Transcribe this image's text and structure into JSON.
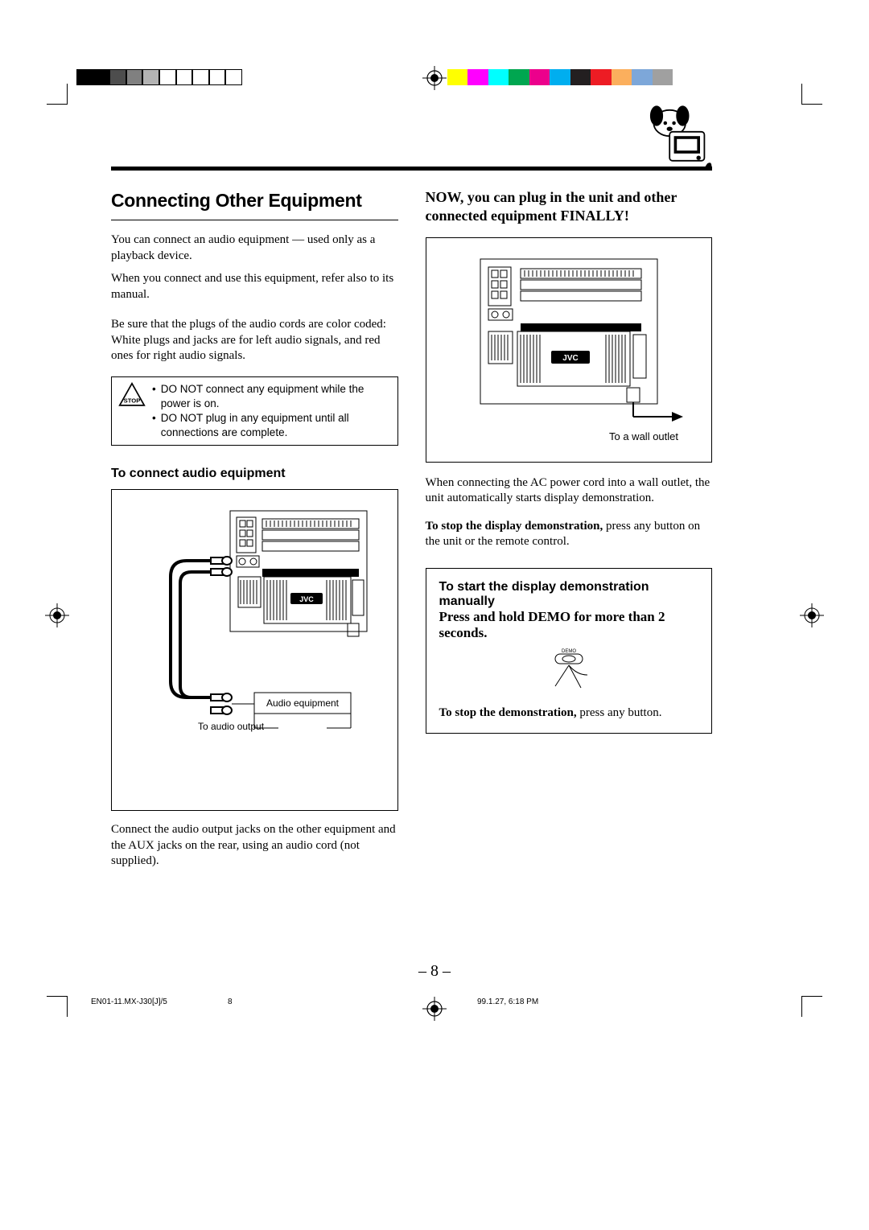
{
  "regbar_left_fills": [
    "#000000",
    "#000000",
    "#4d4d4d",
    "#808080",
    "#b3b3b3",
    "#ffffff",
    "#ffffff",
    "#ffffff",
    "#ffffff",
    "#ffffff"
  ],
  "regbar_right_fills": [
    "#ffff00",
    "#ff00ff",
    "#00ffff",
    "#00a650",
    "#ec008c",
    "#00aeef",
    "#231f20",
    "#ed1c24",
    "#fbaf5d",
    "#7da7d9",
    "#a0a0a0"
  ],
  "section_title": "Connecting Other Equipment",
  "intro_p1": "You can connect an audio equipment — used only as a playback device.",
  "intro_p2": "When you connect and use this equipment, refer also to its manual.",
  "intro_p3": "Be sure that the plugs of the audio cords are color coded: White plugs and jacks are for left audio signals, and red ones for right audio signals.",
  "warn_b1": "DO NOT connect any equipment while the power is on.",
  "warn_b2": "DO NOT plug in any equipment until all connections are complete.",
  "subhead_left": "To connect audio equipment",
  "fig1_label_audio_eq": "Audio equipment",
  "fig1_label_to_audio_out": "To audio output",
  "left_after_fig": "Connect the audio output jacks on the other equipment and the AUX jacks on the rear, using an audio cord (not supplied).",
  "right_head": "NOW, you can plug in the unit and other connected equipment FINALLY!",
  "fig2_label_wall": "To a wall outlet",
  "right_p1": "When connecting the AC power cord into a wall outlet, the unit automatically starts display demonstration.",
  "right_p2_bold": "To stop the display demonstration,",
  "right_p2_rest": " press any button on the unit or the remote control.",
  "demo_head": "To start the display demonstration manually",
  "demo_line2": "Press and hold DEMO for more than 2 seconds.",
  "demo_btn_label": "DEMO",
  "demo_stop_bold": "To stop the demonstration,",
  "demo_stop_rest": " press any button.",
  "page_number": "– 8 –",
  "footer_file": "EN01-11.MX-J30[J]/5",
  "footer_page": "8",
  "footer_time": "99.1.27, 6:18 PM",
  "device_brand": "JVC",
  "stop_label": "STOP"
}
